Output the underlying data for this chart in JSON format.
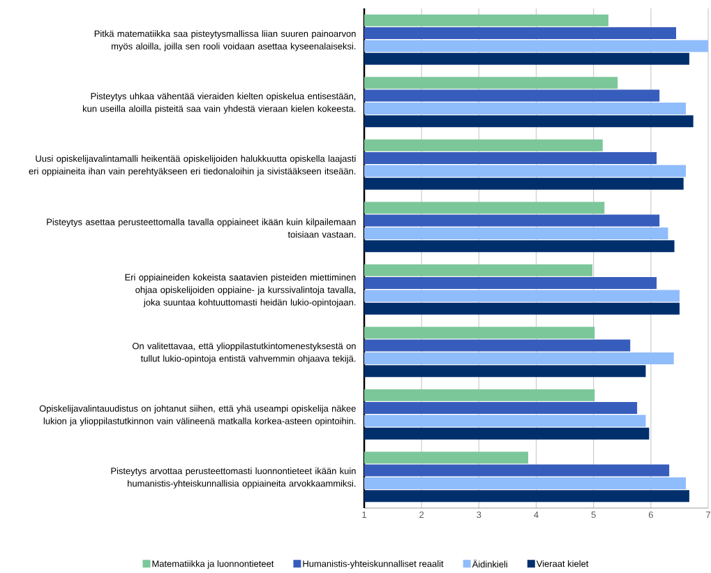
{
  "chart_data": {
    "type": "bar",
    "orientation": "horizontal",
    "categories": [
      "Pitkä matematiikka saa pisteytysmallissa liian suuren painoarvon myös aloilla, joilla sen rooli voidaan asettaa kyseenalaiseksi.",
      "Pisteytys uhkaa vähentää vieraiden kielten opiskelua entisestään, kun useilla aloilla pisteitä saa vain yhdestä vieraan kielen kokeesta.",
      "Uusi opiskelijavalintamalli heikentää opiskelijoiden halukkuutta opiskella laajasti eri oppiaineita ihan vain perehtyäkseen eri tiedonaloihin ja sivistääkseen itseään.",
      "Pisteytys asettaa perusteettomalla tavalla oppiaineet ikään kuin kilpailemaan toisiaan vastaan.",
      "Eri oppiaineiden kokeista saatavien pisteiden miettiminen ohjaa opiskelijoiden oppiaine- ja kurssivalintoja tavalla, joka suuntaa kohtuuttomasti heidän lukio-opintojaan.",
      "On valitettavaa, että ylioppilastutkintomenestyksestä on tullut lukio-opintoja entistä vahvemmin ohjaava tekijä.",
      "Opiskelijavalintauudistus on johtanut siihen, että yhä useampi opiskelija näkee lukion ja ylioppilastutkinnon vain välineenä matkalla korkea-asteen opintoihin.",
      "Pisteytys arvottaa perusteettomasti luonnontieteet ikään kuin humanistis-yhteiskunnallisia oppiaineita arvokkaammiksi."
    ],
    "series": [
      {
        "name": "Matematiikka ja luonnontieteet",
        "color": "#7cc79a",
        "values": [
          5.26,
          5.42,
          5.16,
          5.19,
          4.98,
          5.02,
          5.02,
          3.86
        ]
      },
      {
        "name": "Humanistis-yhteiskunnalliset reaalit",
        "color": "#375dbc",
        "values": [
          6.44,
          6.15,
          6.1,
          6.15,
          6.1,
          5.64,
          5.76,
          6.32
        ]
      },
      {
        "name": "Äidinkieli",
        "color": "#8fbcfb",
        "values": [
          7.0,
          6.61,
          6.61,
          6.3,
          6.5,
          6.4,
          5.91,
          6.61
        ]
      },
      {
        "name": "Vieraat kielet",
        "color": "#002f6c",
        "values": [
          6.67,
          6.74,
          6.57,
          6.41,
          6.5,
          5.91,
          5.97,
          6.67
        ]
      }
    ],
    "xlim": [
      1,
      7
    ],
    "xticks": [
      1,
      2,
      3,
      4,
      5,
      6,
      7
    ],
    "grid": "x",
    "legend": "bottom"
  }
}
